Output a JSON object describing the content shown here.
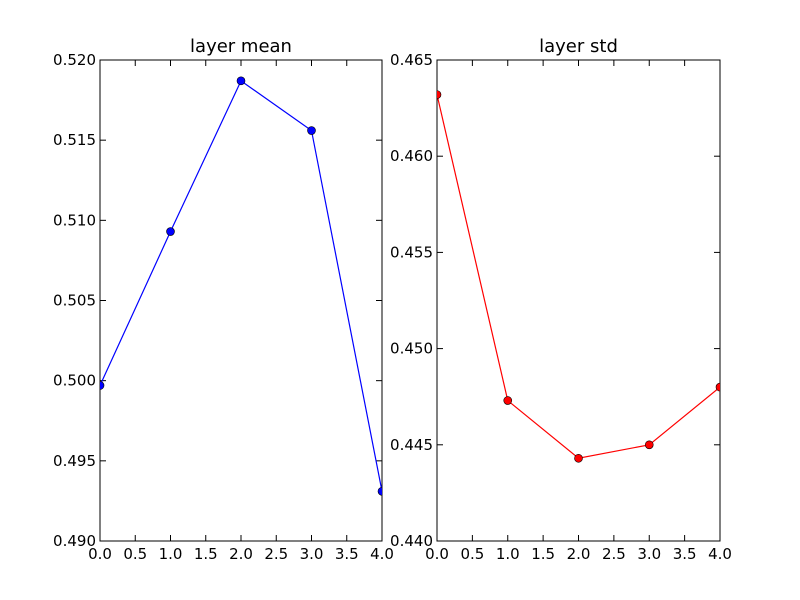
{
  "chart_data": [
    {
      "type": "line",
      "title": "layer mean",
      "xlabel": "",
      "ylabel": "",
      "xlim": [
        0.0,
        4.0
      ],
      "ylim": [
        0.49,
        0.52
      ],
      "xticks": [
        "0.0",
        "0.5",
        "1.0",
        "1.5",
        "2.0",
        "2.5",
        "3.0",
        "3.5",
        "4.0"
      ],
      "yticks": [
        "0.490",
        "0.495",
        "0.500",
        "0.505",
        "0.510",
        "0.515",
        "0.520"
      ],
      "grid": false,
      "series": [
        {
          "color": "#0000ff",
          "marker": "circle",
          "x": [
            0,
            1,
            2,
            3,
            4
          ],
          "y": [
            0.4997,
            0.5093,
            0.5187,
            0.5156,
            0.4931
          ]
        }
      ]
    },
    {
      "type": "line",
      "title": "layer std",
      "xlabel": "",
      "ylabel": "",
      "xlim": [
        0.0,
        4.0
      ],
      "ylim": [
        0.44,
        0.465
      ],
      "xticks": [
        "0.0",
        "0.5",
        "1.0",
        "1.5",
        "2.0",
        "2.5",
        "3.0",
        "3.5",
        "4.0"
      ],
      "yticks": [
        "0.440",
        "0.445",
        "0.450",
        "0.455",
        "0.460",
        "0.465"
      ],
      "grid": false,
      "series": [
        {
          "color": "#ff0000",
          "marker": "circle",
          "x": [
            0,
            1,
            2,
            3,
            4
          ],
          "y": [
            0.4632,
            0.4473,
            0.4443,
            0.445,
            0.448
          ]
        }
      ]
    }
  ]
}
